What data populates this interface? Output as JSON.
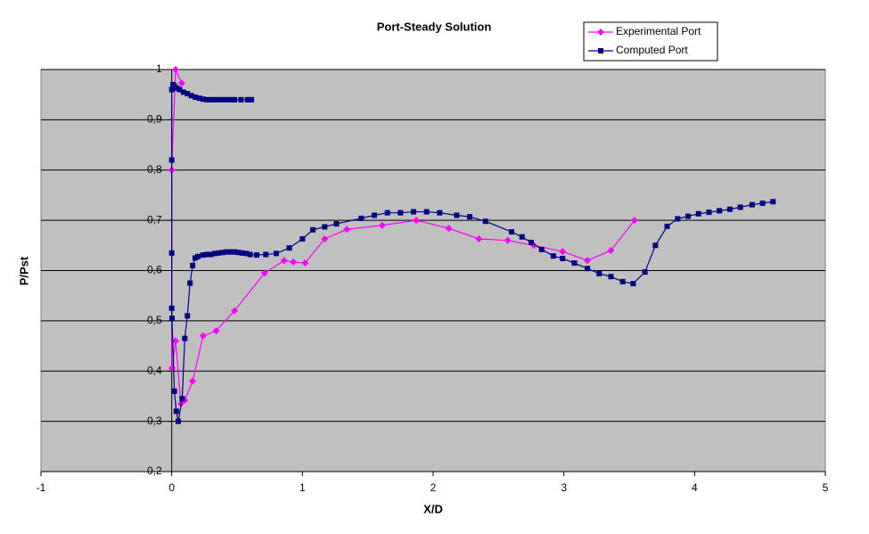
{
  "chart_data": {
    "type": "scatter",
    "title": "Port-Steady Solution",
    "x_label": "X/D",
    "y_label": "P/Pst",
    "xlim": [
      -1,
      5
    ],
    "xticks": [
      -1,
      0,
      1,
      2,
      3,
      4,
      5
    ],
    "ylim": [
      0.2,
      1
    ],
    "yticks": [
      {
        "value": 0.2,
        "label": "0,2"
      },
      {
        "value": 0.3,
        "label": "0,3"
      },
      {
        "value": 0.4,
        "label": "0,4"
      },
      {
        "value": 0.5,
        "label": "0,5"
      },
      {
        "value": 0.6,
        "label": "0,6"
      },
      {
        "value": 0.7,
        "label": "0,7"
      },
      {
        "value": 0.8,
        "label": "0,8"
      },
      {
        "value": 0.9,
        "label": "0,9"
      },
      1
    ],
    "grid": true,
    "legend": "top-right",
    "plot_background": "#c0c0c0",
    "series": [
      {
        "name": "Experimental Port",
        "color": "#ff00ff",
        "marker": "diamond",
        "x": [
          0.077,
          0.03,
          0,
          0.002,
          0.03,
          0.07,
          0.1,
          0.16,
          0.24,
          0.34,
          0.48,
          0.71,
          0.86,
          0.93,
          1.02,
          1.17,
          1.34,
          1.61,
          1.87,
          2.12,
          2.35,
          2.57,
          2.77,
          2.99,
          3.18,
          3.36,
          3.54
        ],
        "values": [
          0.973,
          1.0,
          0.8,
          0.406,
          0.46,
          0.335,
          0.342,
          0.38,
          0.47,
          0.48,
          0.52,
          0.595,
          0.62,
          0.617,
          0.615,
          0.663,
          0.682,
          0.69,
          0.7,
          0.684,
          0.663,
          0.66,
          0.65,
          0.638,
          0.62,
          0.64,
          0.7
        ]
      },
      {
        "name": "Computed Port",
        "color": "#000080",
        "marker": "square",
        "x": [
          0.61,
          0.58,
          0.53,
          0.48,
          0.45,
          0.42,
          0.39,
          0.36,
          0.33,
          0.3,
          0.27,
          0.24,
          0.21,
          0.18,
          0.15,
          0.12,
          0.09,
          0.06,
          0.04,
          0.02,
          0.01,
          0.0,
          0.0,
          0.0,
          0.0,
          0.002,
          0.02,
          0.035,
          0.05,
          0.08,
          0.1,
          0.12,
          0.14,
          0.16,
          0.18,
          0.2,
          0.24,
          0.27,
          0.3,
          0.33,
          0.36,
          0.39,
          0.42,
          0.45,
          0.48,
          0.51,
          0.54,
          0.57,
          0.6,
          0.65,
          0.72,
          0.8,
          0.9,
          1.0,
          1.08,
          1.17,
          1.26,
          1.45,
          1.55,
          1.65,
          1.75,
          1.85,
          1.95,
          2.05,
          2.18,
          2.28,
          2.4,
          2.6,
          2.68,
          2.75,
          2.83,
          2.92,
          2.99,
          3.08,
          3.18,
          3.27,
          3.36,
          3.45,
          3.53,
          3.62,
          3.7,
          3.79,
          3.87,
          3.95,
          4.03,
          4.11,
          4.19,
          4.27,
          4.35,
          4.44,
          4.52,
          4.6
        ],
        "values": [
          0.94,
          0.94,
          0.94,
          0.94,
          0.94,
          0.94,
          0.94,
          0.94,
          0.94,
          0.94,
          0.94,
          0.941,
          0.943,
          0.945,
          0.948,
          0.952,
          0.955,
          0.96,
          0.963,
          0.967,
          0.97,
          0.96,
          0.82,
          0.635,
          0.525,
          0.505,
          0.36,
          0.32,
          0.3,
          0.345,
          0.465,
          0.51,
          0.575,
          0.61,
          0.625,
          0.628,
          0.631,
          0.632,
          0.632,
          0.634,
          0.635,
          0.636,
          0.637,
          0.637,
          0.637,
          0.636,
          0.635,
          0.634,
          0.632,
          0.631,
          0.632,
          0.634,
          0.645,
          0.663,
          0.681,
          0.687,
          0.693,
          0.704,
          0.71,
          0.715,
          0.715,
          0.717,
          0.717,
          0.715,
          0.71,
          0.707,
          0.698,
          0.677,
          0.667,
          0.656,
          0.642,
          0.629,
          0.624,
          0.615,
          0.604,
          0.594,
          0.588,
          0.578,
          0.574,
          0.597,
          0.65,
          0.688,
          0.703,
          0.708,
          0.713,
          0.716,
          0.719,
          0.722,
          0.726,
          0.731,
          0.734,
          0.737
        ]
      }
    ]
  }
}
